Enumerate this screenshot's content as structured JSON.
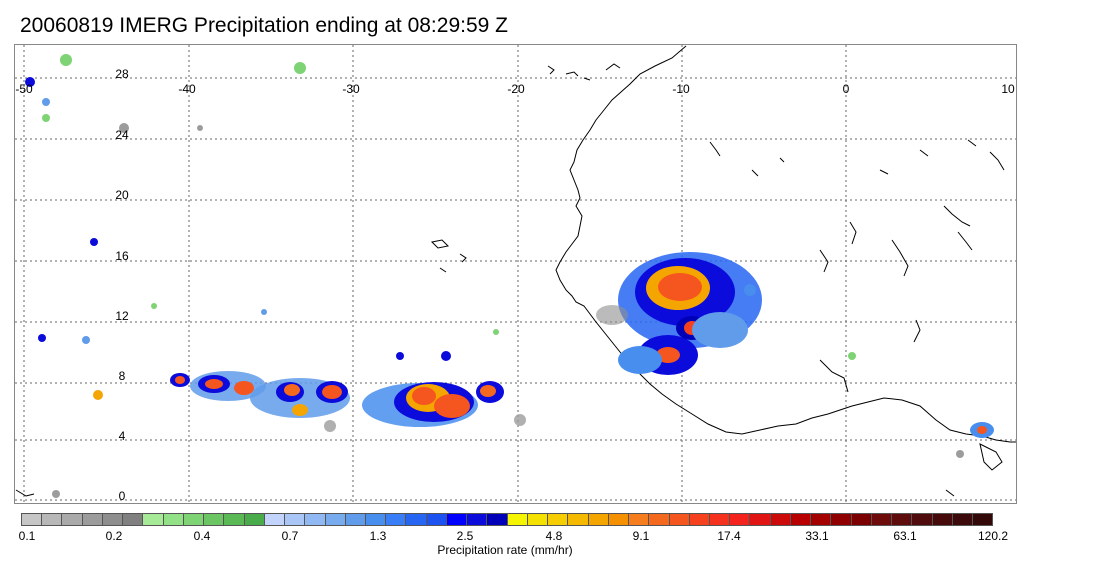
{
  "title": "20060819 IMERG Precipitation ending at 08:29:59 Z",
  "lon_labels": [
    "-50",
    "-40",
    "-30",
    "-20",
    "-10",
    "0",
    "10"
  ],
  "lat_labels": [
    "28",
    "24",
    "20",
    "16",
    "12",
    "8",
    "4",
    "0"
  ],
  "colorbar": {
    "label": "Precipitation rate (mm/hr)",
    "tick_labels": [
      "0.1",
      "0.2",
      "0.4",
      "0.7",
      "1.3",
      "2.5",
      "4.8",
      "9.1",
      "17.4",
      "33.1",
      "63.1",
      "120.2"
    ],
    "colors": [
      "#c6c6c6",
      "#b8b8b8",
      "#aaaaaa",
      "#9c9c9c",
      "#8e8e8e",
      "#808080",
      "#a6ea98",
      "#92e186",
      "#7ed374",
      "#6ac562",
      "#5ab855",
      "#4aab4a",
      "#c2d4fb",
      "#a9c6f7",
      "#90b8f3",
      "#78aaee",
      "#609cea",
      "#488eee",
      "#3a7ef7",
      "#2666f3",
      "#1c52ef",
      "#0000ff",
      "#0b0bdc",
      "#0000b8",
      "#f5f500",
      "#f5e100",
      "#f5cd00",
      "#f5b900",
      "#f5a500",
      "#f59100",
      "#f57d1e",
      "#f5691e",
      "#f5551e",
      "#f5411e",
      "#f5321e",
      "#f5231e",
      "#e11414",
      "#cd0a0a",
      "#b90000",
      "#a50000",
      "#910000",
      "#7d0000",
      "#6e0c0c",
      "#5f0c0c",
      "#500c0c",
      "#460a0a",
      "#3c0a0a",
      "#320808"
    ]
  },
  "map": {
    "region": "Eastern tropical Atlantic and West Africa",
    "lon_range": [
      -50,
      10
    ],
    "lat_range": [
      -0.5,
      30
    ]
  }
}
